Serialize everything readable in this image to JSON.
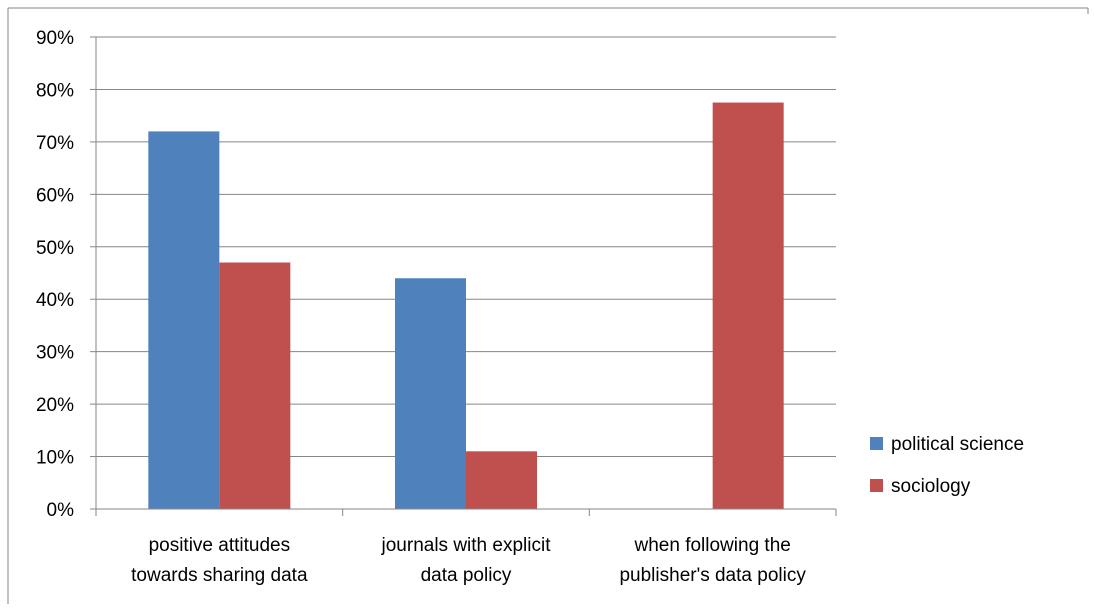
{
  "chart_data": {
    "type": "bar",
    "title": "",
    "xlabel": "",
    "ylabel": "",
    "categories": [
      [
        "positive attitudes",
        "towards sharing data"
      ],
      [
        "journals with explicit",
        "data policy"
      ],
      [
        "when following the",
        "publisher's data policy"
      ]
    ],
    "series": [
      {
        "name": "political science",
        "color": "#4F81BD",
        "values": [
          72,
          44,
          null
        ]
      },
      {
        "name": "sociology",
        "color": "#C0504D",
        "values": [
          47,
          11,
          77.5
        ]
      }
    ],
    "ylim": [
      0,
      90
    ],
    "yticks": [
      "0%",
      "10%",
      "20%",
      "30%",
      "40%",
      "50%",
      "60%",
      "70%",
      "80%",
      "90%"
    ],
    "unit": "%",
    "grid": true,
    "legend_position": "right"
  }
}
